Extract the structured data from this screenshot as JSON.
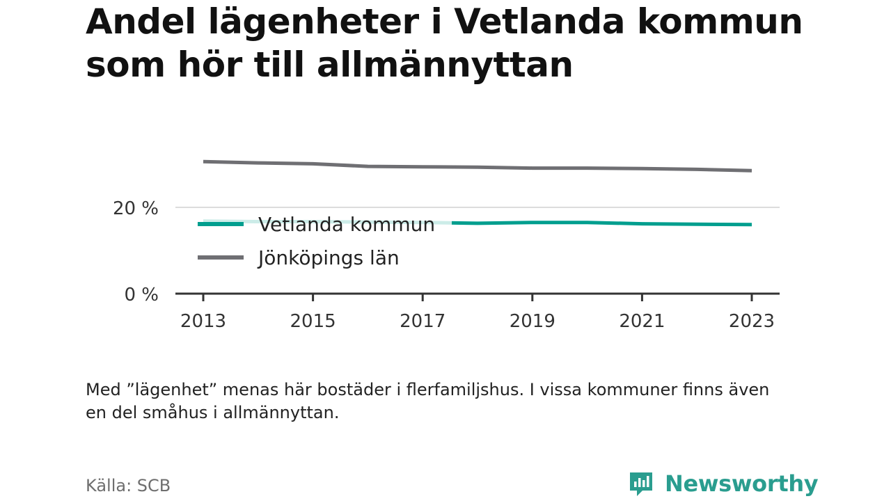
{
  "title": "Andel lägenheter i Vetlanda kommun som hör till allmännyttan",
  "note": "Med ”lägenhet” menas här bostäder i flerfamiljshus. I vissa kommuner finns även en del småhus i allmännyttan.",
  "source": "Källa: SCB",
  "brand": {
    "name": "Newsworthy",
    "color": "#2a9d8f"
  },
  "chart_data": {
    "type": "line",
    "x": [
      2013,
      2014,
      2015,
      2016,
      2017,
      2018,
      2019,
      2020,
      2021,
      2022,
      2023
    ],
    "x_ticks": [
      "2013",
      "2015",
      "2017",
      "2019",
      "2021",
      "2023"
    ],
    "y_ticks": [
      "0 %",
      "20 %"
    ],
    "ylim": [
      0,
      33
    ],
    "grid": true,
    "legend_position": "inside-left",
    "series": [
      {
        "name": "Vetlanda kommun",
        "color": "#009e8e",
        "values": [
          16.8,
          16.7,
          16.7,
          16.6,
          16.5,
          16.3,
          16.5,
          16.5,
          16.2,
          16.1,
          16.0
        ]
      },
      {
        "name": "Jönköpings län",
        "color": "#6f6f73",
        "values": [
          30.6,
          30.3,
          30.1,
          29.5,
          29.4,
          29.3,
          29.1,
          29.1,
          29.0,
          28.8,
          28.5
        ]
      }
    ]
  }
}
